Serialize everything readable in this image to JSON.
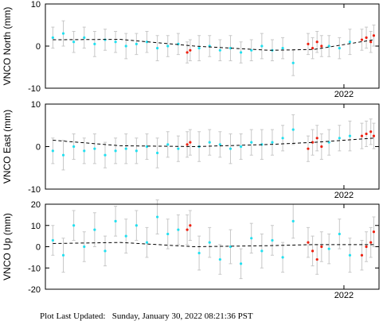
{
  "chart_data": [
    {
      "type": "scatter",
      "y_label": "VNCO North (mm)",
      "xlim": [
        2020,
        2022.235
      ],
      "xticks": [
        2022
      ],
      "ylim": [
        -10,
        10
      ],
      "yticks": [
        -10,
        0,
        10
      ],
      "series": [
        {
          "color": "#22e0f0",
          "x": [
            2020.05,
            2020.12,
            2020.19,
            2020.26,
            2020.33,
            2020.4,
            2020.47,
            2020.54,
            2020.61,
            2020.68,
            2020.75,
            2020.82,
            2020.89,
            2021.03,
            2021.1,
            2021.17,
            2021.24,
            2021.31,
            2021.38,
            2021.45,
            2021.52,
            2021.59,
            2021.66,
            2021.9,
            2021.97,
            2022.04
          ],
          "values": [
            2,
            3,
            1,
            2,
            0.5,
            1.5,
            1,
            0,
            0.5,
            1,
            -0.5,
            0,
            0.5,
            -0.5,
            0,
            -1,
            -0.5,
            -1.5,
            -1,
            0,
            -1,
            -0.5,
            -4,
            0,
            -0.5,
            1
          ],
          "errors": [
            2.5,
            3,
            2.5,
            2.5,
            3,
            2.5,
            2.5,
            3,
            2.5,
            2.5,
            3,
            2.5,
            2.5,
            3,
            2.5,
            2.5,
            3,
            2.5,
            2.5,
            3,
            2.5,
            2.5,
            3,
            2.5,
            2.5,
            3
          ]
        },
        {
          "color": "#ee2010",
          "x": [
            2020.95,
            2020.97,
            2021.76,
            2021.79,
            2021.82,
            2021.85,
            2022.12,
            2022.15,
            2022.18,
            2022.2
          ],
          "values": [
            -1.5,
            -1,
            0.5,
            -0.5,
            1,
            0,
            1.5,
            2,
            1,
            2.5
          ],
          "errors": [
            2.5,
            2.5,
            2.5,
            2.5,
            2.5,
            2.5,
            2.5,
            2.5,
            2.5,
            2.5
          ]
        },
        {
          "color": "#000000",
          "style": "dashed",
          "x": [
            2020.05,
            2020.5,
            2021.0,
            2021.5,
            2021.8,
            2022.2
          ],
          "values": [
            1.5,
            1.6,
            0,
            -1,
            -0.8,
            1.5
          ]
        }
      ]
    },
    {
      "type": "scatter",
      "y_label": "VNCO East (mm)",
      "xlim": [
        2020,
        2022.235
      ],
      "xticks": [
        2022
      ],
      "ylim": [
        -10,
        10
      ],
      "yticks": [
        -10,
        0,
        10
      ],
      "series": [
        {
          "color": "#22e0f0",
          "x": [
            2020.05,
            2020.12,
            2020.19,
            2020.26,
            2020.33,
            2020.4,
            2020.47,
            2020.54,
            2020.61,
            2020.68,
            2020.75,
            2020.82,
            2020.89,
            2021.03,
            2021.1,
            2021.17,
            2021.24,
            2021.31,
            2021.38,
            2021.45,
            2021.52,
            2021.59,
            2021.66,
            2021.9,
            2021.97,
            2022.04
          ],
          "values": [
            -1,
            -2,
            0,
            -1,
            -0.5,
            -2,
            -1,
            -0.5,
            -1,
            0,
            -1.5,
            0.5,
            -0.5,
            0,
            1,
            0.5,
            -0.5,
            0,
            1,
            0.5,
            1,
            2,
            4,
            1,
            2,
            2.5
          ],
          "errors": [
            3,
            3.5,
            3,
            3,
            3.5,
            3,
            3,
            3.5,
            3,
            3,
            3.5,
            3,
            3,
            3.5,
            3,
            3,
            3.5,
            3,
            3,
            3.5,
            3,
            3,
            3.5,
            3,
            3,
            3.5
          ]
        },
        {
          "color": "#ee2010",
          "x": [
            2020.95,
            2020.97,
            2021.76,
            2021.79,
            2021.82,
            2021.85,
            2022.12,
            2022.15,
            2022.18,
            2022.2
          ],
          "values": [
            0.5,
            1,
            -0.5,
            1,
            2,
            0,
            2.5,
            3,
            3.5,
            2.5
          ],
          "errors": [
            3,
            3,
            3,
            3,
            3,
            3,
            3,
            3,
            3,
            3
          ]
        },
        {
          "color": "#000000",
          "style": "dashed",
          "x": [
            2020.05,
            2020.5,
            2021.0,
            2021.5,
            2021.8,
            2022.2
          ],
          "values": [
            1.5,
            0.2,
            0,
            0.5,
            1,
            2
          ]
        }
      ]
    },
    {
      "type": "scatter",
      "y_label": "VNCO Up (mm)",
      "xlim": [
        2020,
        2022.235
      ],
      "xticks": [
        2022
      ],
      "ylim": [
        -20,
        20
      ],
      "yticks": [
        -20,
        -10,
        0,
        10,
        20
      ],
      "series": [
        {
          "color": "#22e0f0",
          "x": [
            2020.05,
            2020.12,
            2020.19,
            2020.26,
            2020.33,
            2020.4,
            2020.47,
            2020.54,
            2020.61,
            2020.68,
            2020.75,
            2020.82,
            2020.89,
            2021.03,
            2021.1,
            2021.17,
            2021.24,
            2021.31,
            2021.38,
            2021.45,
            2021.52,
            2021.59,
            2021.66,
            2021.9,
            2021.97,
            2022.04
          ],
          "values": [
            3,
            -4,
            10,
            0,
            8,
            -2,
            12,
            5,
            10,
            2,
            14,
            6,
            8,
            -3,
            2,
            -6,
            0,
            -8,
            4,
            -2,
            3,
            -5,
            12,
            -1,
            6,
            -4
          ],
          "errors": [
            7,
            8,
            7,
            7,
            8,
            7,
            7,
            8,
            7,
            7,
            8,
            7,
            7,
            8,
            7,
            7,
            8,
            7,
            7,
            8,
            7,
            7,
            8,
            7,
            7,
            8
          ]
        },
        {
          "color": "#ee2010",
          "x": [
            2020.95,
            2020.97,
            2021.76,
            2021.79,
            2021.82,
            2021.85,
            2022.12,
            2022.15,
            2022.18,
            2022.2
          ],
          "values": [
            8,
            10,
            2,
            -2,
            -6,
            0,
            -4,
            0,
            2,
            7
          ],
          "errors": [
            7,
            7,
            7,
            7,
            7,
            7,
            7,
            7,
            7,
            7
          ]
        },
        {
          "color": "#000000",
          "style": "dashed",
          "x": [
            2020.05,
            2020.5,
            2021.0,
            2021.5,
            2021.8,
            2022.2
          ],
          "values": [
            1.5,
            2,
            0,
            0.5,
            1,
            1
          ]
        }
      ]
    }
  ],
  "footer": "Plot Last Updated:   Sunday, January 30, 2022 08:21:36 PST"
}
